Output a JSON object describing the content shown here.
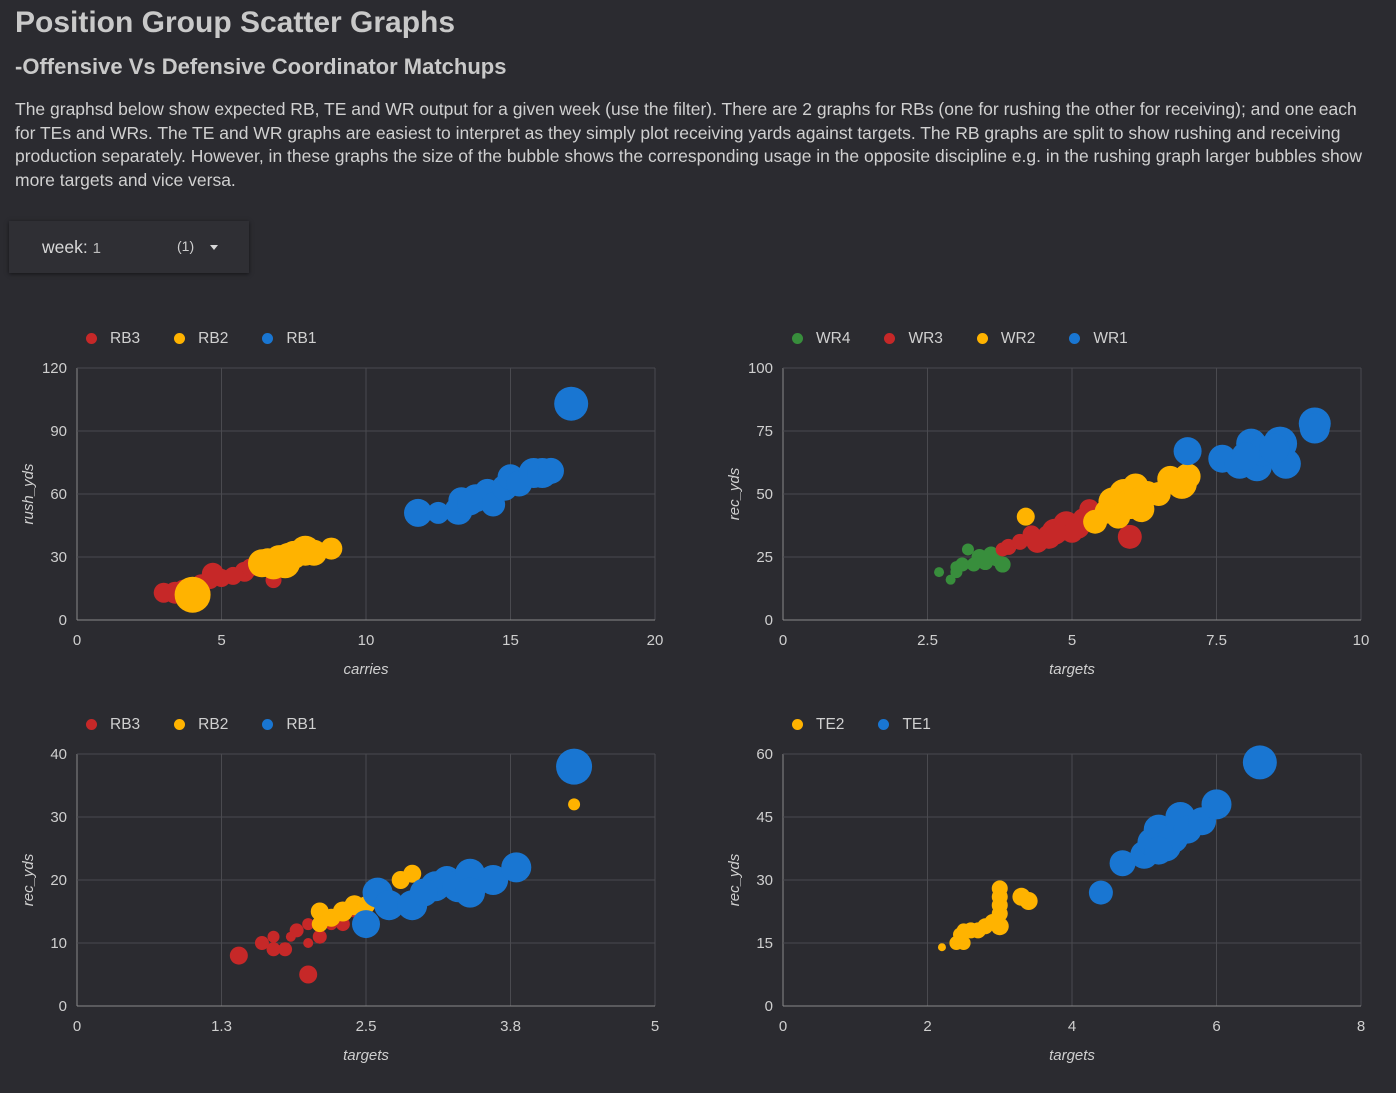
{
  "page": {
    "title": "Position Group Scatter Graphs",
    "subtitle": "-Offensive Vs Defensive Coordinator Matchups",
    "description": "The graphsd below show expected RB, TE and WR output for a given week (use the filter). There are 2 graphs for RBs (one for rushing the other for receiving); and one each for TEs and WRs. The TE and WR graphs are easiest to interpret as they simply plot receiving yards against targets. The RB graphs are split to show rushing and receiving production separately. However, in these graphs the size of the bubble shows the corresponding usage in the opposite discipline e.g. in the rushing graph larger bubbles show more targets and vice versa."
  },
  "filter": {
    "label": "week:",
    "value": "1",
    "count": "(1)",
    "icon": "chevron-down-icon"
  },
  "colors": {
    "red": "#c62828",
    "yellow": "#ffb300",
    "blue": "#1976d2",
    "green": "#388e3c"
  },
  "chart_data": [
    {
      "type": "scatter",
      "xlabel": "carries",
      "ylabel": "rush_yds",
      "xlim": [
        0,
        20
      ],
      "ylim": [
        0,
        120
      ],
      "xticks": [
        "0",
        "5",
        "10",
        "15",
        "20"
      ],
      "yticks": [
        "0",
        "30",
        "60",
        "90",
        "120"
      ],
      "grid": true,
      "legend": "top-left",
      "series": [
        {
          "name": "RB3",
          "color": "#c62828",
          "points": [
            [
              3.0,
              13,
              10
            ],
            [
              3.4,
              13,
              11
            ],
            [
              3.7,
              14,
              11
            ],
            [
              4.0,
              15,
              10
            ],
            [
              4.3,
              17,
              10
            ],
            [
              4.6,
              19,
              9
            ],
            [
              4.7,
              22,
              11
            ],
            [
              5.0,
              20,
              9
            ],
            [
              5.4,
              21,
              9
            ],
            [
              5.8,
              23,
              10
            ],
            [
              6.0,
              25,
              9
            ],
            [
              6.8,
              19,
              8
            ],
            [
              4.2,
              13,
              12
            ]
          ]
        },
        {
          "name": "RB2",
          "color": "#ffb300",
          "points": [
            [
              4.0,
              12,
              18
            ],
            [
              6.4,
              27,
              14
            ],
            [
              6.8,
              26,
              14
            ],
            [
              7.0,
              29,
              14
            ],
            [
              7.2,
              27,
              15
            ],
            [
              7.5,
              31,
              14
            ],
            [
              7.9,
              33,
              15
            ],
            [
              8.2,
              32,
              13
            ],
            [
              8.8,
              34,
              11
            ],
            [
              6.6,
              28,
              13
            ],
            [
              7.3,
              30,
              14
            ]
          ]
        },
        {
          "name": "RB1",
          "color": "#1976d2",
          "points": [
            [
              11.8,
              51,
              14
            ],
            [
              12.5,
              51,
              11
            ],
            [
              13.2,
              52,
              14
            ],
            [
              13.3,
              57,
              13
            ],
            [
              13.8,
              58,
              14
            ],
            [
              14.2,
              61,
              13
            ],
            [
              14.4,
              55,
              12
            ],
            [
              14.8,
              63,
              13
            ],
            [
              15.0,
              68,
              13
            ],
            [
              15.3,
              65,
              13
            ],
            [
              15.8,
              70,
              15
            ],
            [
              16.1,
              70,
              15
            ],
            [
              16.4,
              71,
              13
            ],
            [
              17.1,
              103,
              17
            ],
            [
              13.6,
              56,
              13
            ]
          ]
        }
      ]
    },
    {
      "type": "scatter",
      "xlabel": "targets",
      "ylabel": "rec_yds",
      "xlim": [
        0,
        10
      ],
      "ylim": [
        0,
        100
      ],
      "xticks": [
        "0",
        "2.5",
        "5",
        "7.5",
        "10"
      ],
      "yticks": [
        "0",
        "25",
        "50",
        "75",
        "100"
      ],
      "grid": true,
      "legend": "top-left",
      "series": [
        {
          "name": "WR4",
          "color": "#388e3c",
          "points": [
            [
              2.7,
              19,
              5
            ],
            [
              2.9,
              16,
              5
            ],
            [
              3.0,
              19,
              6
            ],
            [
              3.1,
              22,
              7
            ],
            [
              3.2,
              28,
              6
            ],
            [
              3.3,
              22,
              7
            ],
            [
              3.4,
              25,
              8
            ],
            [
              3.5,
              23,
              8
            ],
            [
              3.6,
              26,
              8
            ],
            [
              3.7,
              24,
              7
            ],
            [
              3.8,
              22,
              8
            ],
            [
              3.0,
              21,
              6
            ]
          ]
        },
        {
          "name": "WR3",
          "color": "#c62828",
          "points": [
            [
              3.8,
              28,
              7
            ],
            [
              3.9,
              29,
              8
            ],
            [
              4.1,
              31,
              8
            ],
            [
              4.3,
              34,
              9
            ],
            [
              4.4,
              31,
              11
            ],
            [
              4.6,
              33,
              12
            ],
            [
              4.8,
              36,
              12
            ],
            [
              4.9,
              38,
              13
            ],
            [
              5.0,
              35,
              11
            ],
            [
              5.2,
              40,
              11
            ],
            [
              5.3,
              44,
              10
            ],
            [
              5.6,
              45,
              9
            ],
            [
              6.0,
              33,
              12
            ],
            [
              4.7,
              35,
              13
            ],
            [
              5.1,
              37,
              12
            ]
          ]
        },
        {
          "name": "WR2",
          "color": "#ffb300",
          "points": [
            [
              4.2,
              41,
              9
            ],
            [
              5.4,
              39,
              12
            ],
            [
              5.6,
              43,
              12
            ],
            [
              5.7,
              47,
              14
            ],
            [
              5.8,
              41,
              12
            ],
            [
              5.9,
              50,
              15
            ],
            [
              6.0,
              46,
              15
            ],
            [
              6.1,
              53,
              13
            ],
            [
              6.2,
              44,
              13
            ],
            [
              6.3,
              50,
              13
            ],
            [
              6.7,
              56,
              13
            ],
            [
              6.9,
              54,
              15
            ],
            [
              7.0,
              57,
              13
            ],
            [
              6.5,
              50,
              12
            ],
            [
              6.2,
              48,
              13
            ]
          ]
        },
        {
          "name": "WR1",
          "color": "#1976d2",
          "points": [
            [
              7.0,
              67,
              14
            ],
            [
              7.6,
              64,
              14
            ],
            [
              7.9,
              62,
              15
            ],
            [
              8.1,
              70,
              15
            ],
            [
              8.2,
              61,
              15
            ],
            [
              8.3,
              67,
              15
            ],
            [
              8.6,
              70,
              17
            ],
            [
              8.7,
              62,
              15
            ],
            [
              9.2,
              78,
              16
            ],
            [
              9.2,
              76,
              15
            ],
            [
              8.0,
              65,
              14
            ],
            [
              8.5,
              68,
              15
            ]
          ]
        }
      ]
    },
    {
      "type": "scatter",
      "xlabel": "targets",
      "ylabel": "rec_yds",
      "xlim": [
        0,
        5
      ],
      "ylim": [
        0,
        40
      ],
      "xticks": [
        "0",
        "1.3",
        "2.5",
        "3.8",
        "5"
      ],
      "yticks": [
        "0",
        "10",
        "20",
        "30",
        "40"
      ],
      "grid": true,
      "legend": "top-left",
      "series": [
        {
          "name": "RB3",
          "color": "#c62828",
          "points": [
            [
              1.4,
              8,
              9
            ],
            [
              1.6,
              10,
              7
            ],
            [
              1.7,
              11,
              6
            ],
            [
              1.7,
              9,
              7
            ],
            [
              1.8,
              9,
              7
            ],
            [
              1.85,
              11,
              5
            ],
            [
              1.9,
              12,
              7
            ],
            [
              2.0,
              13,
              6
            ],
            [
              2.0,
              10,
              5
            ],
            [
              2.1,
              11,
              7
            ],
            [
              2.2,
              14,
              7
            ],
            [
              2.3,
              13,
              7
            ],
            [
              2.4,
              15,
              6
            ],
            [
              2.0,
              5,
              9
            ],
            [
              2.2,
              13,
              6
            ]
          ]
        },
        {
          "name": "RB2",
          "color": "#ffb300",
          "points": [
            [
              2.1,
              15,
              9
            ],
            [
              2.2,
              14,
              9
            ],
            [
              2.3,
              15,
              10
            ],
            [
              2.4,
              16,
              10
            ],
            [
              2.5,
              16,
              9
            ],
            [
              2.7,
              17,
              9
            ],
            [
              2.8,
              20,
              9
            ],
            [
              2.9,
              21,
              9
            ],
            [
              4.3,
              32,
              6
            ],
            [
              2.6,
              18,
              9
            ],
            [
              2.1,
              13,
              8
            ]
          ]
        },
        {
          "name": "RB1",
          "color": "#1976d2",
          "points": [
            [
              2.5,
              13,
              14
            ],
            [
              2.6,
              18,
              15
            ],
            [
              2.7,
              16,
              15
            ],
            [
              2.9,
              16,
              15
            ],
            [
              3.1,
              19,
              15
            ],
            [
              3.2,
              20,
              14
            ],
            [
              3.3,
              19,
              16
            ],
            [
              3.4,
              21,
              15
            ],
            [
              3.4,
              18,
              15
            ],
            [
              3.6,
              20,
              15
            ],
            [
              3.8,
              22,
              15
            ],
            [
              4.3,
              38,
              18
            ],
            [
              3.0,
              18,
              14
            ]
          ]
        }
      ]
    },
    {
      "type": "scatter",
      "xlabel": "targets",
      "ylabel": "rec_yds",
      "xlim": [
        0,
        8
      ],
      "ylim": [
        0,
        60
      ],
      "xticks": [
        "0",
        "2",
        "4",
        "6",
        "8"
      ],
      "yticks": [
        "0",
        "15",
        "30",
        "45",
        "60"
      ],
      "grid": true,
      "legend": "top-left",
      "series": [
        {
          "name": "TE2",
          "color": "#ffb300",
          "points": [
            [
              2.2,
              14,
              4
            ],
            [
              2.4,
              15,
              7
            ],
            [
              2.45,
              17,
              7
            ],
            [
              2.5,
              18,
              7
            ],
            [
              2.5,
              15,
              7
            ],
            [
              2.6,
              18,
              8
            ],
            [
              2.7,
              18,
              8
            ],
            [
              2.8,
              19,
              8
            ],
            [
              2.9,
              20,
              8
            ],
            [
              3.0,
              19,
              9
            ],
            [
              3.0,
              22,
              8
            ],
            [
              3.0,
              24,
              8
            ],
            [
              3.0,
              26,
              8
            ],
            [
              3.0,
              28,
              8
            ],
            [
              3.3,
              26,
              9
            ],
            [
              3.4,
              25,
              9
            ]
          ]
        },
        {
          "name": "TE1",
          "color": "#1976d2",
          "points": [
            [
              4.4,
              27,
              12
            ],
            [
              4.7,
              34,
              13
            ],
            [
              5.0,
              36,
              14
            ],
            [
              5.1,
              39,
              14
            ],
            [
              5.2,
              42,
              15
            ],
            [
              5.3,
              38,
              15
            ],
            [
              5.4,
              40,
              15
            ],
            [
              5.5,
              45,
              15
            ],
            [
              5.6,
              42,
              14
            ],
            [
              5.8,
              44,
              14
            ],
            [
              6.0,
              48,
              15
            ],
            [
              6.6,
              58,
              17
            ],
            [
              5.2,
              37,
              14
            ]
          ]
        }
      ]
    }
  ]
}
